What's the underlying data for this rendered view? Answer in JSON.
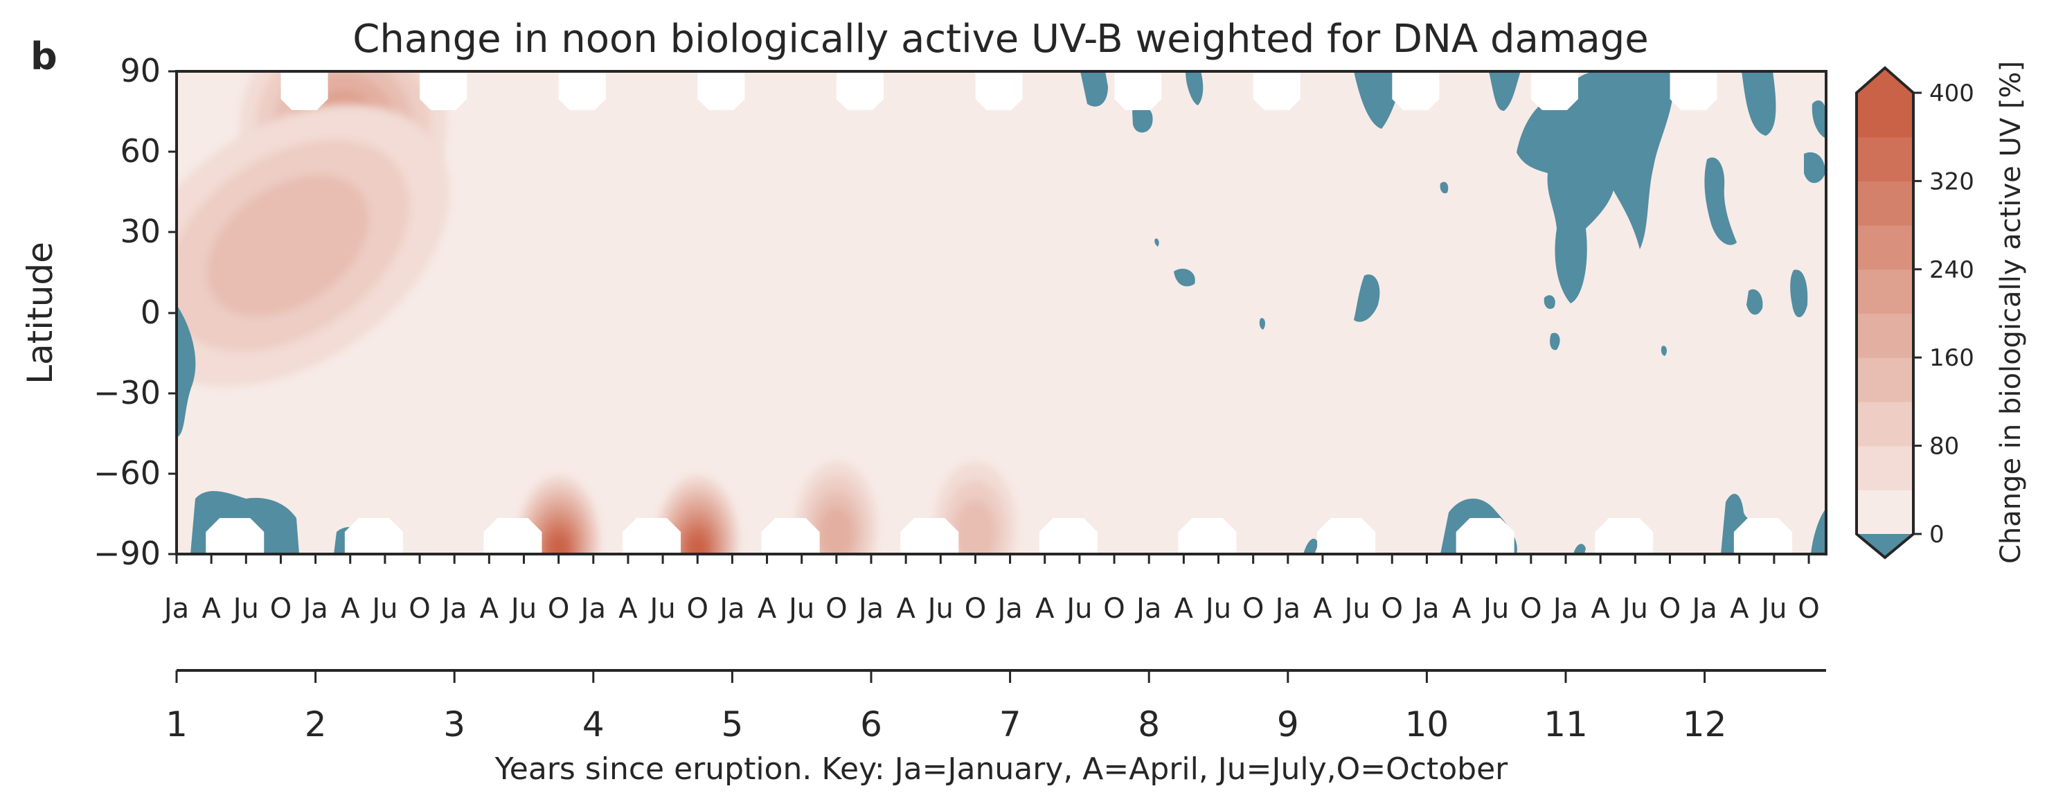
{
  "chart_data": {
    "type": "heatmap",
    "panel_label": "b",
    "title": "Change in noon biologically active UV-B weighted for DNA damage",
    "ylabel": "Latitude",
    "xlabel": "Years since eruption. Key: Ja=January, A=April, Ju=July,O=October",
    "colorbar_label": "Change in biologically active UV [%]",
    "ylim": [
      -90,
      90
    ],
    "yticks": [
      "90",
      "60",
      "30",
      "0",
      "−30",
      "−60",
      "−90"
    ],
    "month_ticks": [
      "Ja",
      "A",
      "Ju",
      "O"
    ],
    "year_ticks": [
      "1",
      "2",
      "3",
      "4",
      "5",
      "6",
      "7",
      "8",
      "9",
      "10",
      "11",
      "12"
    ],
    "xlim_years": [
      1,
      12.9
    ],
    "colorbar_ticks": [
      "400",
      "320",
      "240",
      "160",
      "80",
      "0"
    ],
    "color_levels": [
      0,
      40,
      80,
      120,
      160,
      200,
      240,
      280,
      320,
      360,
      400
    ],
    "colors": {
      "levels": [
        "#f7ebe7",
        "#f2dcd5",
        "#edcdc4",
        "#e8beb2",
        "#e3afa0",
        "#dea08f",
        "#d9907d",
        "#d4816b",
        "#cf7159",
        "#ca6247"
      ],
      "negative": "#538da1",
      "missing": "#ffffff"
    },
    "features": [
      {
        "name": "northern high-latitude enhancement",
        "year": 2.2,
        "lat": 70,
        "peak_change": 200
      },
      {
        "name": "northern mid-latitude enhancement",
        "year": 1.8,
        "lat": 25,
        "peak_change": 120
      },
      {
        "name": "antarctic spring peak",
        "year": 3.75,
        "lat": -85,
        "peak_change": 360
      },
      {
        "name": "antarctic spring peak",
        "year": 4.75,
        "lat": -85,
        "peak_change": 400
      },
      {
        "name": "antarctic spring peak",
        "year": 5.75,
        "lat": -80,
        "peak_change": 160
      },
      {
        "name": "antarctic spring peak",
        "year": 6.75,
        "lat": -80,
        "peak_change": 120
      }
    ]
  }
}
